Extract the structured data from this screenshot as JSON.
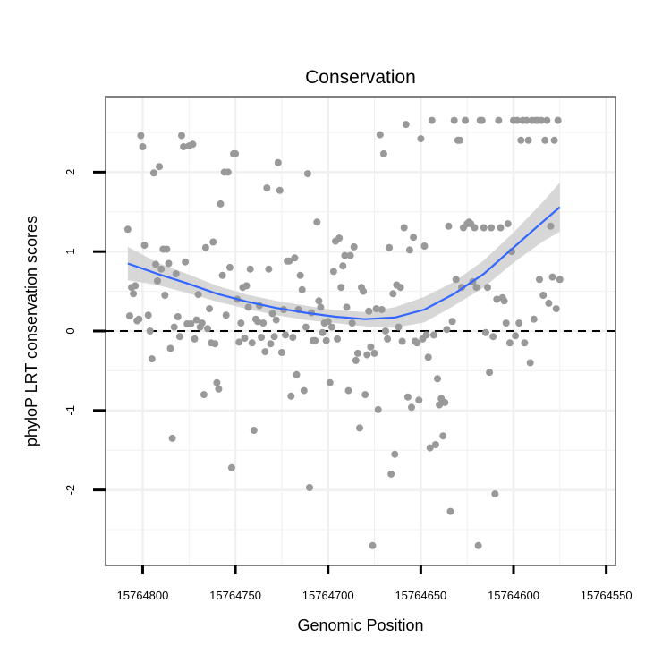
{
  "chart_data": {
    "type": "scatter",
    "title": "Conservation",
    "xlabel": "Genomic Position",
    "ylabel": "phyloP LRT conservation scores",
    "x_reversed": true,
    "xlim": [
      15764820,
      15764545
    ],
    "ylim": [
      -2.95,
      2.95
    ],
    "x_ticks": [
      15764800,
      15764750,
      15764700,
      15764650,
      15764600,
      15764550
    ],
    "x_tick_labels": [
      "15764800",
      "15764750",
      "15764700",
      "15764650",
      "15764600",
      "15764550"
    ],
    "y_ticks": [
      -2,
      -1,
      0,
      1,
      2
    ],
    "y_tick_labels": [
      "-2",
      "-1",
      "0",
      "1",
      "2"
    ],
    "grid": true,
    "reference_line": {
      "y": 0,
      "style": "dashed"
    },
    "colors": {
      "points": "#999999",
      "smooth": "#3366ff",
      "band": "#d0d0d0",
      "grid": "#f0f0f0",
      "border": "#808080"
    },
    "points": [
      [
        15764808,
        1.28
      ],
      [
        15764807,
        0.19
      ],
      [
        15764806,
        0.55
      ],
      [
        15764805,
        0.47
      ],
      [
        15764804,
        0.57
      ],
      [
        15764803,
        0.13
      ],
      [
        15764802,
        0.15
      ],
      [
        15764801,
        2.46
      ],
      [
        15764800,
        2.32
      ],
      [
        15764799,
        1.08
      ],
      [
        15764797,
        0.2
      ],
      [
        15764796,
        0.0
      ],
      [
        15764795,
        -0.35
      ],
      [
        15764794,
        1.99
      ],
      [
        15764793,
        0.84
      ],
      [
        15764792,
        0.63
      ],
      [
        15764791,
        2.07
      ],
      [
        15764790,
        0.78
      ],
      [
        15764789,
        1.03
      ],
      [
        15764788,
        0.45
      ],
      [
        15764787,
        1.03
      ],
      [
        15764786,
        0.85
      ],
      [
        15764785,
        -0.22
      ],
      [
        15764784,
        -1.35
      ],
      [
        15764783,
        0.05
      ],
      [
        15764782,
        0.72
      ],
      [
        15764781,
        0.18
      ],
      [
        15764780,
        -0.07
      ],
      [
        15764779,
        2.46
      ],
      [
        15764778,
        2.32
      ],
      [
        15764777,
        0.87
      ],
      [
        15764776,
        0.09
      ],
      [
        15764775,
        2.33
      ],
      [
        15764774,
        0.09
      ],
      [
        15764773,
        2.35
      ],
      [
        15764772,
        -0.1
      ],
      [
        15764771,
        0.14
      ],
      [
        15764770,
        0.46
      ],
      [
        15764769,
        0.05
      ],
      [
        15764768,
        0.1
      ],
      [
        15764767,
        -0.8
      ],
      [
        15764766,
        1.05
      ],
      [
        15764765,
        0.03
      ],
      [
        15764764,
        0.28
      ],
      [
        15764763,
        -0.15
      ],
      [
        15764762,
        1.12
      ],
      [
        15764761,
        -0.16
      ],
      [
        15764760,
        -0.65
      ],
      [
        15764759,
        -0.73
      ],
      [
        15764758,
        1.6
      ],
      [
        15764757,
        0.7
      ],
      [
        15764756,
        2.0
      ],
      [
        15764755,
        0.2
      ],
      [
        15764754,
        2.0
      ],
      [
        15764753,
        0.8
      ],
      [
        15764752,
        -1.72
      ],
      [
        15764751,
        2.23
      ],
      [
        15764750,
        2.23
      ],
      [
        15764749,
        0.4
      ],
      [
        15764748,
        -0.14
      ],
      [
        15764747,
        0.1
      ],
      [
        15764746,
        0.55
      ],
      [
        15764745,
        -0.09
      ],
      [
        15764744,
        0.57
      ],
      [
        15764743,
        0.3
      ],
      [
        15764742,
        0.78
      ],
      [
        15764741,
        -0.15
      ],
      [
        15764740,
        -1.25
      ],
      [
        15764739,
        0.15
      ],
      [
        15764738,
        0.12
      ],
      [
        15764737,
        0.32
      ],
      [
        15764736,
        -0.08
      ],
      [
        15764735,
        0.1
      ],
      [
        15764734,
        -0.26
      ],
      [
        15764733,
        1.8
      ],
      [
        15764732,
        0.78
      ],
      [
        15764731,
        -0.16
      ],
      [
        15764730,
        0.22
      ],
      [
        15764729,
        -0.07
      ],
      [
        15764728,
        0.14
      ],
      [
        15764727,
        2.12
      ],
      [
        15764726,
        1.77
      ],
      [
        15764725,
        -0.27
      ],
      [
        15764724,
        0.27
      ],
      [
        15764723,
        -0.05
      ],
      [
        15764722,
        0.88
      ],
      [
        15764721,
        0.88
      ],
      [
        15764720,
        -0.82
      ],
      [
        15764719,
        -0.08
      ],
      [
        15764718,
        0.92
      ],
      [
        15764717,
        -0.55
      ],
      [
        15764716,
        0.27
      ],
      [
        15764715,
        0.7
      ],
      [
        15764714,
        0.52
      ],
      [
        15764713,
        -0.75
      ],
      [
        15764712,
        0.05
      ],
      [
        15764711,
        1.98
      ],
      [
        15764710,
        -1.97
      ],
      [
        15764709,
        0.23
      ],
      [
        15764708,
        -0.12
      ],
      [
        15764707,
        -0.12
      ],
      [
        15764706,
        1.37
      ],
      [
        15764705,
        0.38
      ],
      [
        15764704,
        0.3
      ],
      [
        15764703,
        -0.02
      ],
      [
        15764702,
        0.1
      ],
      [
        15764701,
        -0.12
      ],
      [
        15764700,
        0.12
      ],
      [
        15764699,
        -0.65
      ],
      [
        15764698,
        0.05
      ],
      [
        15764697,
        0.75
      ],
      [
        15764696,
        1.13
      ],
      [
        15764695,
        -0.1
      ],
      [
        15764694,
        1.17
      ],
      [
        15764693,
        0.55
      ],
      [
        15764692,
        0.82
      ],
      [
        15764691,
        0.95
      ],
      [
        15764690,
        0.3
      ],
      [
        15764689,
        -0.75
      ],
      [
        15764688,
        0.95
      ],
      [
        15764687,
        0.1
      ],
      [
        15764686,
        1.06
      ],
      [
        15764685,
        -0.37
      ],
      [
        15764684,
        -0.28
      ],
      [
        15764683,
        -1.22
      ],
      [
        15764682,
        0.55
      ],
      [
        15764681,
        0.5
      ],
      [
        15764680,
        -0.8
      ],
      [
        15764679,
        -0.3
      ],
      [
        15764678,
        0.25
      ],
      [
        15764677,
        -0.2
      ],
      [
        15764676,
        -2.7
      ],
      [
        15764675,
        -0.28
      ],
      [
        15764674,
        0.28
      ],
      [
        15764673,
        -0.99
      ],
      [
        15764672,
        2.47
      ],
      [
        15764671,
        0.27
      ],
      [
        15764670,
        2.23
      ],
      [
        15764669,
        0.0
      ],
      [
        15764668,
        -0.1
      ],
      [
        15764667,
        1.05
      ],
      [
        15764666,
        -1.8
      ],
      [
        15764665,
        0.47
      ],
      [
        15764664,
        -1.55
      ],
      [
        15764663,
        0.58
      ],
      [
        15764662,
        0.05
      ],
      [
        15764661,
        0.55
      ],
      [
        15764660,
        -0.13
      ],
      [
        15764659,
        1.3
      ],
      [
        15764658,
        2.6
      ],
      [
        15764657,
        -0.83
      ],
      [
        15764656,
        1.02
      ],
      [
        15764655,
        -0.96
      ],
      [
        15764654,
        1.18
      ],
      [
        15764653,
        -0.13
      ],
      [
        15764652,
        -0.15
      ],
      [
        15764651,
        -0.87
      ],
      [
        15764650,
        2.42
      ],
      [
        15764649,
        -0.1
      ],
      [
        15764648,
        1.07
      ],
      [
        15764647,
        -0.05
      ],
      [
        15764646,
        -0.33
      ],
      [
        15764645,
        -1.47
      ],
      [
        15764644,
        2.65
      ],
      [
        15764643,
        -0.05
      ],
      [
        15764642,
        -1.43
      ],
      [
        15764641,
        -0.6
      ],
      [
        15764640,
        -0.93
      ],
      [
        15764639,
        -0.85
      ],
      [
        15764638,
        -1.32
      ],
      [
        15764637,
        -0.9
      ],
      [
        15764636,
        0.02
      ],
      [
        15764635,
        1.32
      ],
      [
        15764634,
        -2.27
      ],
      [
        15764633,
        0.12
      ],
      [
        15764632,
        2.65
      ],
      [
        15764631,
        0.65
      ],
      [
        15764630,
        2.4
      ],
      [
        15764629,
        2.4
      ],
      [
        15764628,
        0.55
      ],
      [
        15764627,
        1.3
      ],
      [
        15764626,
        2.65
      ],
      [
        15764625,
        1.35
      ],
      [
        15764624,
        1.37
      ],
      [
        15764623,
        1.35
      ],
      [
        15764622,
        0.62
      ],
      [
        15764621,
        1.3
      ],
      [
        15764620,
        0.55
      ],
      [
        15764619,
        -2.7
      ],
      [
        15764618,
        2.65
      ],
      [
        15764617,
        2.65
      ],
      [
        15764616,
        1.3
      ],
      [
        15764615,
        -0.02
      ],
      [
        15764614,
        0.55
      ],
      [
        15764613,
        -0.52
      ],
      [
        15764612,
        1.3
      ],
      [
        15764611,
        -0.07
      ],
      [
        15764610,
        -2.05
      ],
      [
        15764609,
        0.4
      ],
      [
        15764608,
        2.65
      ],
      [
        15764607,
        1.3
      ],
      [
        15764606,
        0.42
      ],
      [
        15764605,
        0.38
      ],
      [
        15764604,
        0.1
      ],
      [
        15764603,
        1.35
      ],
      [
        15764602,
        -0.15
      ],
      [
        15764601,
        1.0
      ],
      [
        15764600,
        2.65
      ],
      [
        15764599,
        -0.06
      ],
      [
        15764598,
        2.65
      ],
      [
        15764597,
        0.1
      ],
      [
        15764596,
        2.4
      ],
      [
        15764595,
        2.65
      ],
      [
        15764594,
        -0.15
      ],
      [
        15764593,
        2.65
      ],
      [
        15764592,
        2.4
      ],
      [
        15764591,
        -0.4
      ],
      [
        15764590,
        2.65
      ],
      [
        15764589,
        0.15
      ],
      [
        15764588,
        2.65
      ],
      [
        15764587,
        2.65
      ],
      [
        15764586,
        0.65
      ],
      [
        15764585,
        2.65
      ],
      [
        15764584,
        0.45
      ],
      [
        15764583,
        2.4
      ],
      [
        15764582,
        2.65
      ],
      [
        15764581,
        0.35
      ],
      [
        15764580,
        1.32
      ],
      [
        15764579,
        0.68
      ],
      [
        15764578,
        2.4
      ],
      [
        15764577,
        0.28
      ],
      [
        15764576,
        2.65
      ],
      [
        15764575,
        0.65
      ]
    ],
    "smooth": {
      "x": [
        15764808,
        15764792,
        15764776,
        15764760,
        15764744,
        15764728,
        15764712,
        15764696,
        15764680,
        15764664,
        15764648,
        15764632,
        15764616,
        15764600,
        15764584,
        15764575
      ],
      "y": [
        0.85,
        0.72,
        0.6,
        0.47,
        0.37,
        0.29,
        0.23,
        0.18,
        0.15,
        0.17,
        0.27,
        0.47,
        0.72,
        1.05,
        1.38,
        1.56
      ],
      "lower": [
        0.64,
        0.58,
        0.48,
        0.37,
        0.28,
        0.2,
        0.14,
        0.1,
        0.06,
        0.04,
        0.11,
        0.32,
        0.55,
        0.86,
        1.13,
        1.25
      ],
      "upper": [
        1.06,
        0.86,
        0.72,
        0.57,
        0.46,
        0.38,
        0.32,
        0.26,
        0.24,
        0.3,
        0.43,
        0.62,
        0.89,
        1.24,
        1.63,
        1.87
      ]
    }
  }
}
